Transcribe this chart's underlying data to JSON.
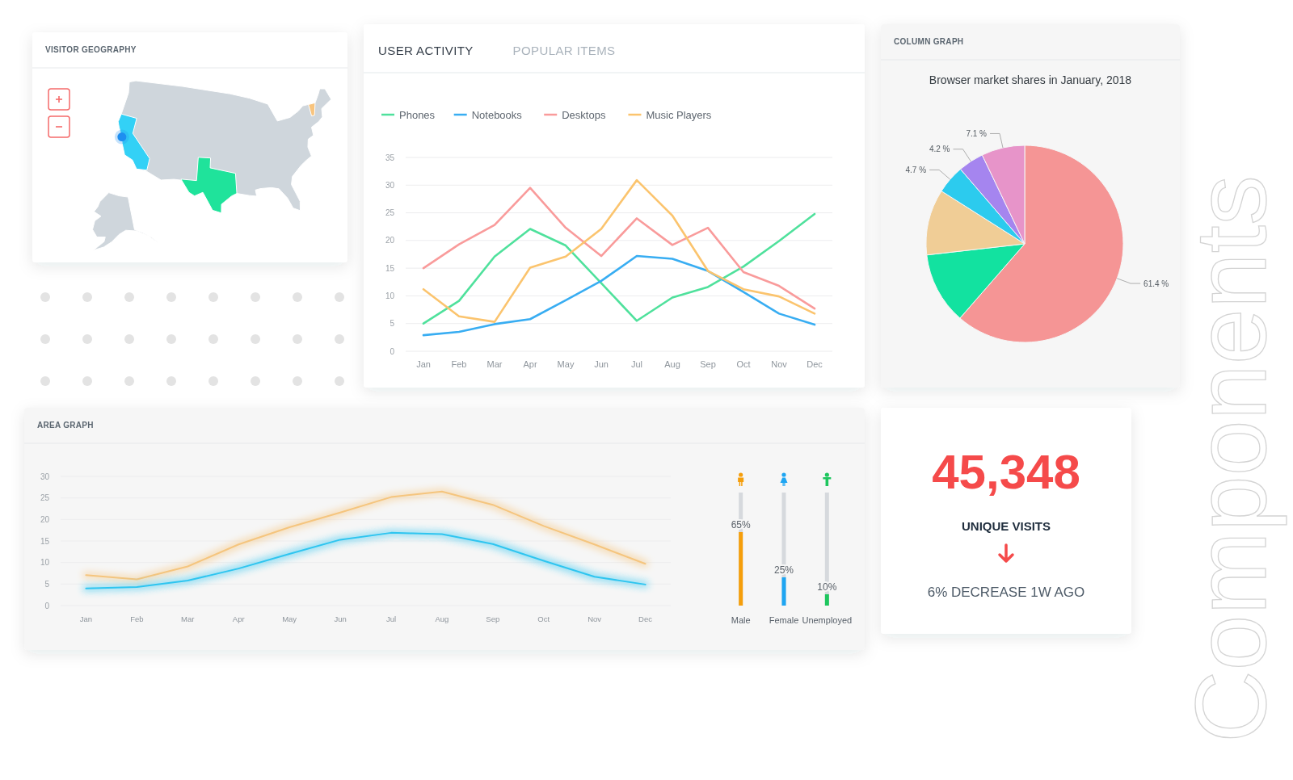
{
  "chart_data": [
    {
      "type": "other",
      "title": "VISITOR GEOGRAPHY"
    },
    {
      "type": "line",
      "title": "USER ACTIVITY",
      "annotations": [
        "POPULAR ITEMS"
      ],
      "categories": [
        "Jan",
        "Feb",
        "Mar",
        "Apr",
        "May",
        "Jun",
        "Jul",
        "Aug",
        "Sep",
        "Oct",
        "Nov",
        "Dec"
      ],
      "series": [
        {
          "name": "Phones",
          "color": "#4fe19c",
          "values": [
            5,
            9.1,
            17.1,
            22.1,
            19.1,
            12.3,
            5.5,
            9.7,
            11.6,
            15.3,
            19.9,
            24.8
          ]
        },
        {
          "name": "Notebooks",
          "color": "#38adf2",
          "values": [
            2.9,
            3.5,
            4.9,
            5.8,
            9.2,
            12.7,
            17.2,
            16.7,
            14.5,
            10.7,
            6.8,
            4.8
          ]
        },
        {
          "name": "Desktops",
          "color": "#f99b9b",
          "values": [
            15,
            19.3,
            22.8,
            29.5,
            22.3,
            17.2,
            24,
            19.2,
            22.3,
            14.3,
            11.8,
            7.7
          ]
        },
        {
          "name": "Music Players",
          "color": "#fbc46e",
          "values": [
            11.2,
            6.3,
            5.3,
            15.1,
            17.1,
            22.1,
            30.9,
            24.5,
            14.5,
            11.2,
            9.9,
            6.8
          ]
        }
      ],
      "ylim": [
        0,
        35
      ],
      "yticks": [
        0,
        5,
        10,
        15,
        20,
        25,
        30,
        35
      ],
      "grid": "y",
      "legend": "top left"
    },
    {
      "type": "pie",
      "title": "COLUMN GRAPH",
      "subtitle": "Browser market shares in January, 2018",
      "categories": [
        null,
        null,
        null,
        null,
        null,
        null
      ],
      "values": [
        61.4,
        11.8,
        10.8,
        4.7,
        4.2,
        7.1
      ],
      "colors": [
        "#f59595",
        "#12e2a0",
        "#f0cd96",
        "#2ccbee",
        "#a585ef",
        "#e794c9"
      ],
      "value_labels": [
        "61.4 %",
        null,
        null,
        "4.7 %",
        "4.2 %",
        "7.1 %"
      ]
    },
    {
      "type": "line",
      "title": "AREA GRAPH",
      "categories": [
        "Jan",
        "Feb",
        "Mar",
        "Apr",
        "May",
        "Jun",
        "Jul",
        "Aug",
        "Sep",
        "Oct",
        "Nov",
        "Dec"
      ],
      "series": [
        {
          "color": "#f5c57e",
          "values": [
            7.1,
            6.1,
            9.1,
            14.2,
            18.2,
            21.6,
            25.2,
            26.5,
            23.4,
            18.5,
            14.2,
            9.7
          ]
        },
        {
          "color": "#2fc5f0",
          "values": [
            4,
            4.3,
            5.8,
            8.6,
            12,
            15.3,
            16.9,
            16.6,
            14.3,
            10.4,
            6.7,
            4.9
          ]
        }
      ],
      "ylim": [
        0,
        30
      ],
      "yticks": [
        0,
        5,
        10,
        15,
        20,
        25,
        30
      ],
      "grid": "y"
    },
    {
      "type": "bar",
      "categories": [
        "Male",
        "Female",
        "Unemployed"
      ],
      "values": [
        65,
        25,
        10
      ],
      "colors": [
        "#f59e0b",
        "#1ea5f2",
        "#1ec65e"
      ],
      "value_labels": [
        "65%",
        "25%",
        "10%"
      ],
      "grid": "x",
      "tick_labels": "x"
    },
    {
      "type": "other",
      "title": "UNIQUE VISITS",
      "annotations": [
        "45,348",
        "6% DECREASE 1W AGO"
      ]
    },
    {
      "type": "other",
      "title": "Components"
    }
  ]
}
